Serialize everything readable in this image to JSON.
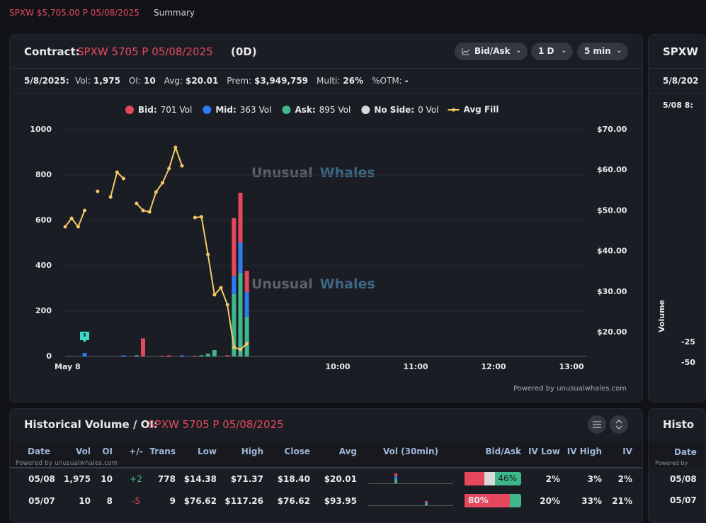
{
  "top_bar": {
    "symbol": "SPXW $5,705.00 P 05/08/2025",
    "tab": "Summary"
  },
  "contract_card": {
    "label": "Contract:",
    "contract": "SPXW 5705 P 05/08/2025",
    "expiry_tag": "(0D)",
    "buttons": [
      "Bid/Ask",
      "1 D",
      "5 min"
    ],
    "stats": {
      "date": "5/8/2025:",
      "items": [
        {
          "label": "Vol:",
          "value": "1,975"
        },
        {
          "label": "OI:",
          "value": "10"
        },
        {
          "label": "Avg:",
          "value": "$20.01"
        },
        {
          "label": "Prem:",
          "value": "$3,949,759"
        },
        {
          "label": "Multi:",
          "value": "26%"
        },
        {
          "label": "%OTM:",
          "value": "-"
        }
      ]
    },
    "watermark": [
      "Unusual",
      "Whales"
    ],
    "powered_by": "Powered by unusualwhales.com",
    "chart": {
      "type": "bar",
      "stacked": true,
      "x": [
        6.75,
        7.25,
        7.417,
        7.5,
        7.75,
        7.833,
        8.0,
        8.167,
        8.25,
        8.333,
        8.417,
        8.583,
        8.667,
        8.75,
        8.833
      ],
      "series": [
        {
          "name": "Bid:",
          "legend_value": "701 Vol",
          "color": "#e5485d",
          "values": [
            0,
            0,
            0,
            80,
            3,
            5,
            0,
            3,
            0,
            0,
            0,
            5,
            255,
            219,
            94
          ]
        },
        {
          "name": "Mid:",
          "legend_value": "363 Vol",
          "color": "#2f7bf0",
          "values": [
            15,
            5,
            0,
            0,
            0,
            0,
            5,
            0,
            0,
            0,
            0,
            0,
            80,
            134,
            109
          ]
        },
        {
          "name": "Ask:",
          "legend_value": "895 Vol",
          "color": "#3fb68b",
          "values": [
            0,
            0,
            5,
            0,
            0,
            0,
            0,
            0,
            5,
            12,
            28,
            0,
            275,
            369,
            175
          ]
        },
        {
          "name": "No Side:",
          "legend_value": "0 Vol",
          "color": "#d9d9d9",
          "values": [
            0,
            0,
            0,
            0,
            0,
            0,
            0,
            0,
            0,
            0,
            0,
            0,
            0,
            0,
            0
          ]
        },
        {
          "name": "Avg Fill",
          "type": "line",
          "axis": "y2",
          "color": "#f5c867",
          "x": [
            6.5,
            6.583,
            6.667,
            6.75,
            6.833,
            6.917,
            7.0,
            7.083,
            7.167,
            7.25,
            7.333,
            7.417,
            7.5,
            7.583,
            7.667,
            7.75,
            7.833,
            7.917,
            8.0,
            8.083,
            8.167,
            8.25,
            8.333,
            8.417,
            8.5,
            8.583,
            8.667,
            8.75,
            8.833
          ],
          "values": [
            46.05,
            48.15,
            46.05,
            50.07,
            null,
            54.79,
            null,
            53.39,
            59.51,
            57.94,
            null,
            51.82,
            50.07,
            49.72,
            54.62,
            56.89,
            60.38,
            65.63,
            61.08,
            null,
            48.32,
            48.5,
            39.23,
            29.27,
            31.01,
            26.82,
            16.33,
            15.8,
            17.2
          ]
        }
      ],
      "xlim": [
        6.5,
        13.2
      ],
      "xticks": [
        {
          "value": 6.5,
          "label": "May 8"
        },
        {
          "value": 10,
          "label": "10:00"
        },
        {
          "value": 11,
          "label": "11:00"
        },
        {
          "value": 12,
          "label": "12:00"
        },
        {
          "value": 13,
          "label": "13:00"
        }
      ],
      "ylim": [
        0,
        1000
      ],
      "yticks": [
        0,
        200,
        400,
        600,
        800,
        1000
      ],
      "y2lim": [
        14.06,
        70
      ],
      "y2ticks": [
        {
          "value": 20,
          "label": "$20.00"
        },
        {
          "value": 30,
          "label": "$30.00"
        },
        {
          "value": 40,
          "label": "$40.00"
        },
        {
          "value": 50,
          "label": "$50.00"
        },
        {
          "value": 60,
          "label": "$60.00"
        },
        {
          "value": 70,
          "label": "$70.00"
        }
      ],
      "grid": true,
      "legend": "top"
    }
  },
  "history_card": {
    "label": "Historical Volume / OI:",
    "contract": "SPXW 5705 P 05/08/2025",
    "powered_by": "Powered by unusualwhales.com",
    "columns": [
      "Date",
      "Vol",
      "OI",
      "+/-",
      "Trans",
      "Low",
      "High",
      "Close",
      "Avg",
      "Vol (30min)",
      "Bid/Ask",
      "IV Low",
      "IV High",
      "IV"
    ],
    "rows": [
      {
        "date": "05/08",
        "vol": "1,975",
        "oi": "10",
        "change": "+2",
        "trans": "778",
        "low": "$14.38",
        "high": "$71.37",
        "close": "$18.40",
        "avg": "$20.01",
        "bid_ask": "46%",
        "iv_low": "2%",
        "iv_high": "3%",
        "iv": "2%"
      },
      {
        "date": "05/07",
        "vol": "10",
        "oi": "8",
        "change": "-5",
        "trans": "9",
        "low": "$76.62",
        "high": "$117.26",
        "close": "$76.62",
        "avg": "$93.95",
        "bid_ask": "80%",
        "iv_low": "20%",
        "iv_high": "33%",
        "iv": "21%"
      }
    ]
  },
  "side_card": {
    "title": "SPXW",
    "date": "5/8/202",
    "row": "5/08 8:",
    "axis_label": "Volume",
    "ticks": [
      "-25",
      "-50"
    ],
    "history_title": "Histo",
    "history_column": "Date",
    "powered_by": "Powered by",
    "dates": [
      "05/08",
      "05/07"
    ]
  }
}
